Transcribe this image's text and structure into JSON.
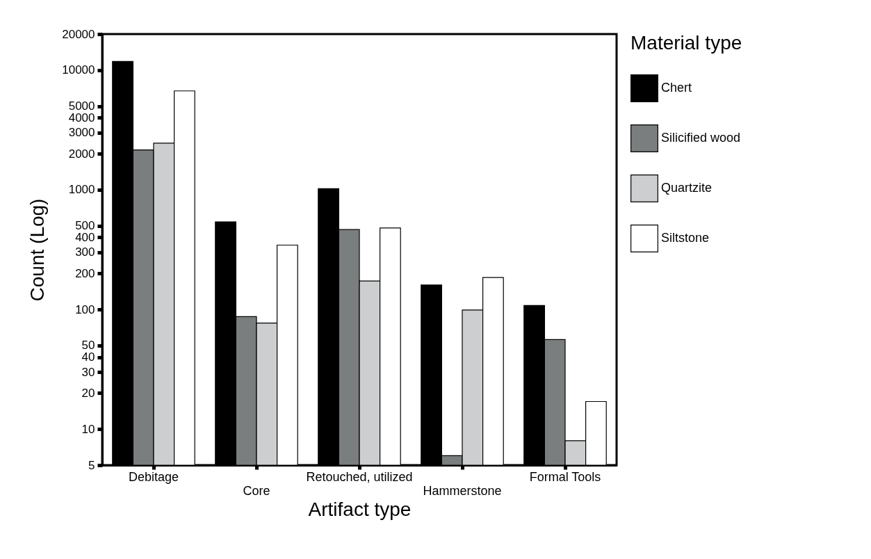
{
  "chart_data": {
    "type": "bar",
    "xlabel": "Artifact type",
    "ylabel": "Count (Log)",
    "legend_title": "Material type",
    "categories": [
      "Debitage",
      "Core",
      "Retouched, utilized",
      "Hammerstone",
      "Formal Tools"
    ],
    "series": [
      {
        "name": "Chert",
        "color": "#000000",
        "values": [
          11800,
          540,
          1020,
          160,
          108
        ]
      },
      {
        "name": "Silicified wood",
        "color": "#7b7e7e",
        "values": [
          2150,
          87,
          465,
          6,
          56
        ]
      },
      {
        "name": "Quartzite",
        "color": "#cdcecf",
        "values": [
          2450,
          77,
          173,
          99,
          8
        ]
      },
      {
        "name": "Siltstone",
        "color": "#ffffff",
        "values": [
          6700,
          345,
          480,
          185,
          17
        ]
      }
    ],
    "log": "y",
    "ylim": [
      5,
      20000
    ],
    "yticks": [
      5,
      10,
      20,
      30,
      40,
      50,
      100,
      200,
      300,
      400,
      500,
      1000,
      2000,
      3000,
      4000,
      5000,
      10000,
      20000
    ],
    "legend": "right",
    "grid": false
  }
}
